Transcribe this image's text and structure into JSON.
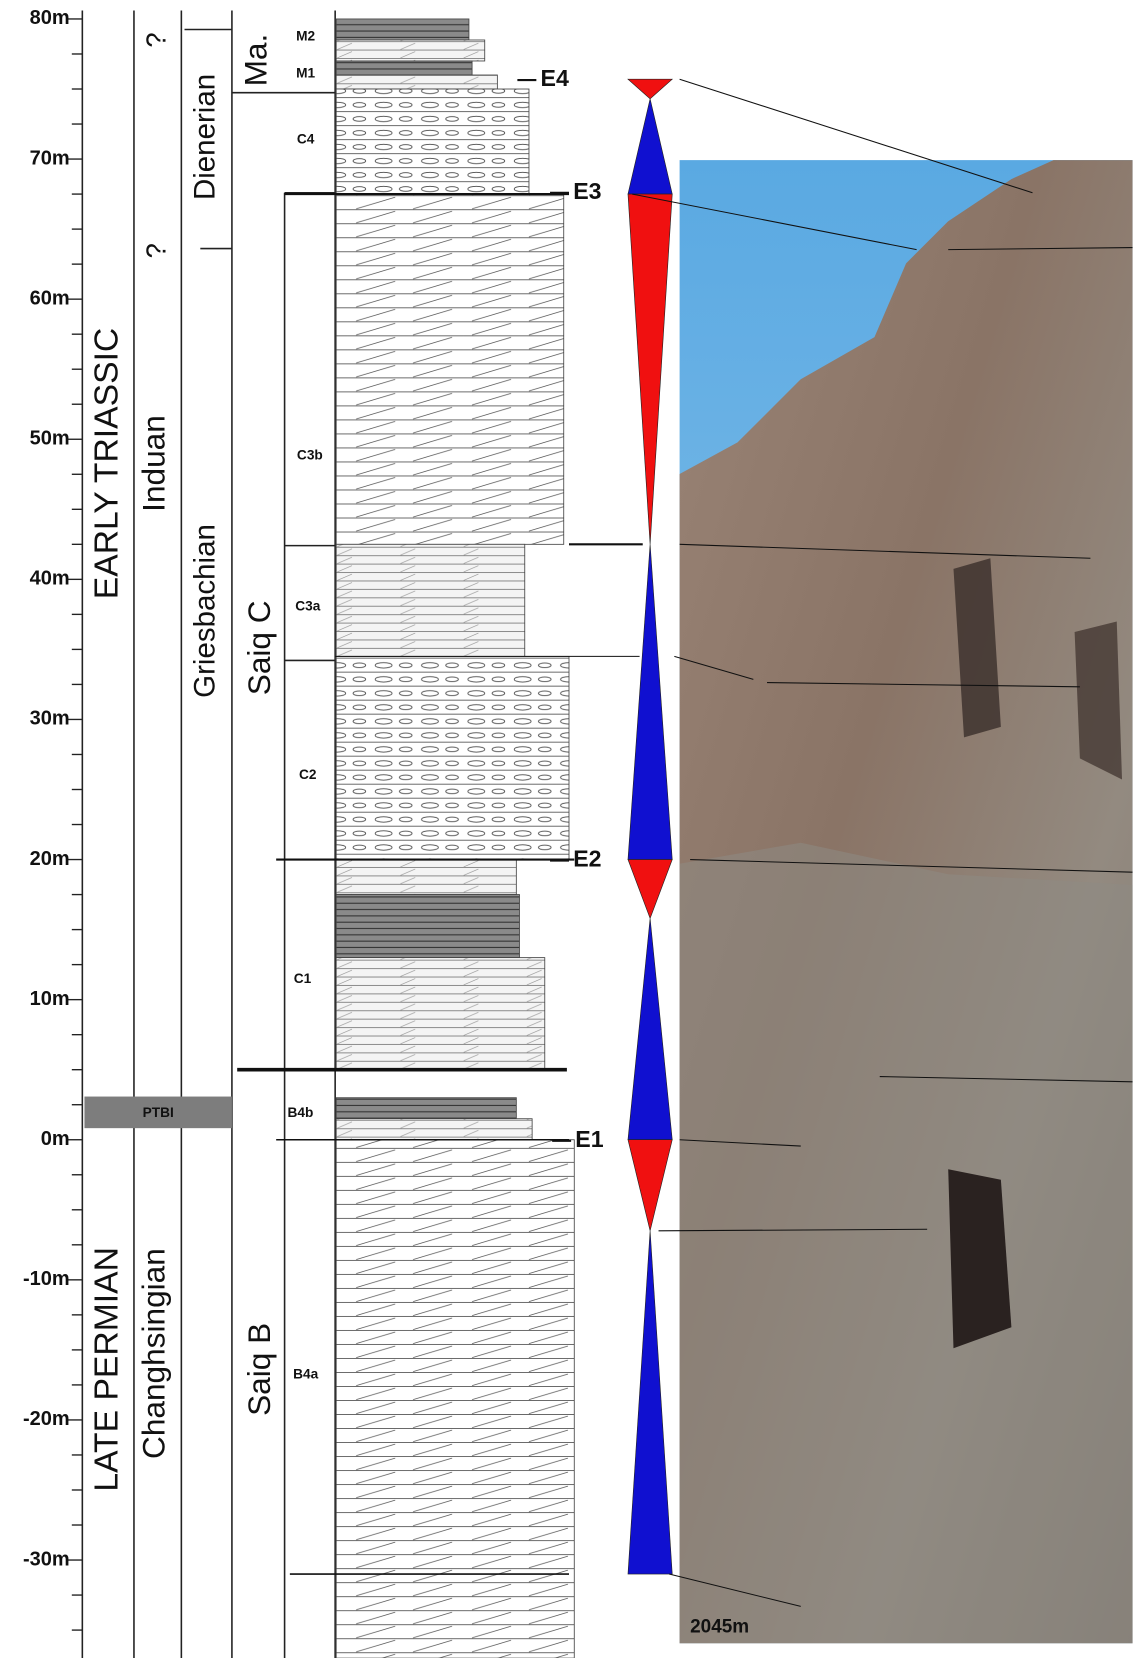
{
  "axis": {
    "ticks": [
      "80m",
      "70m",
      "60m",
      "50m",
      "40m",
      "30m",
      "20m",
      "10m",
      "0m",
      "-10m",
      "-20m",
      "-30m"
    ]
  },
  "columns": {
    "system": [
      "EARLY TRIASSIC",
      "LATE PERMIAN"
    ],
    "stage": [
      "Induan",
      "Changhsingian"
    ],
    "stage_query": [
      "?",
      "?"
    ],
    "substage": [
      "Dienerian",
      "Griesbachian"
    ],
    "formation": [
      "Ma.",
      "Saiq C",
      "Saiq B"
    ]
  },
  "units": [
    "M2",
    "M1",
    "C4",
    "C3b",
    "C3a",
    "C2",
    "C1",
    "B4b",
    "B4a"
  ],
  "boundary": "PTBI",
  "events": [
    "E4",
    "E3",
    "E2",
    "E1"
  ],
  "photo": {
    "caption": "2045m"
  }
}
